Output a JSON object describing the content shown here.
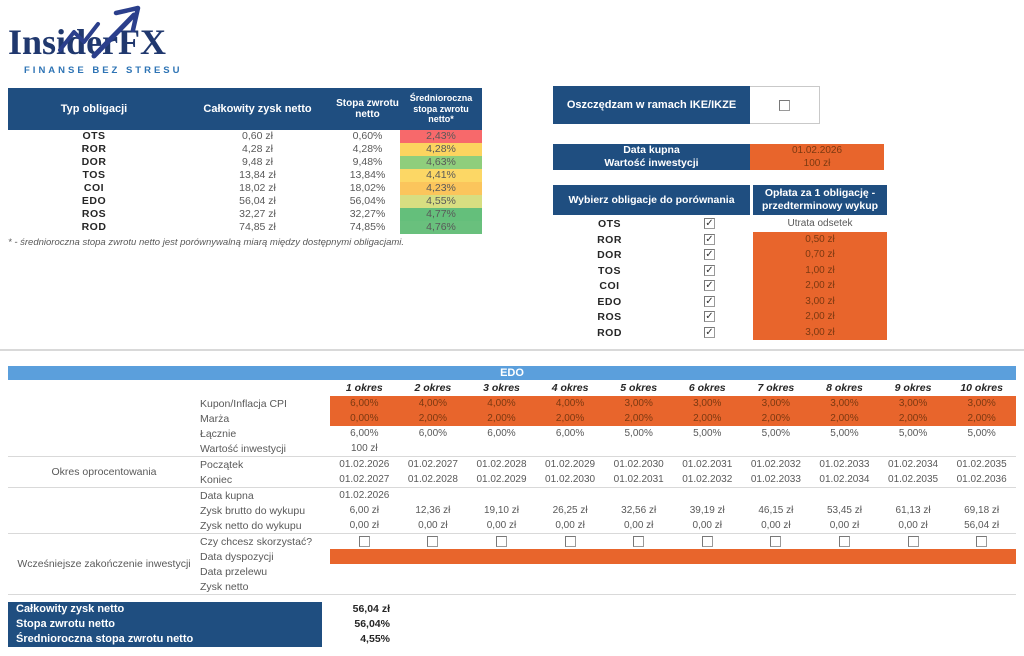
{
  "brand": {
    "name": "InsiderFX",
    "tagline": "FINANSE BEZ STRESU"
  },
  "colors": {
    "header_blue": "#1F4E80",
    "accent_orange": "#E8652C",
    "orange_text": "#7C3911",
    "edo_bar_blue": "#5B9FDC"
  },
  "comparison": {
    "col_headers": [
      "Typ obligacji",
      "Całkowity zysk netto",
      "Stopa zwrotu netto",
      "Średnioroczna stopa zwrotu netto*"
    ],
    "rows": [
      {
        "type": "OTS",
        "profit": "0,60 zł",
        "rate": "0,60%",
        "annual": "2,43%",
        "annual_color": "#F7696B"
      },
      {
        "type": "ROR",
        "profit": "4,28 zł",
        "rate": "4,28%",
        "annual": "4,28%",
        "annual_color": "#FCD45F"
      },
      {
        "type": "DOR",
        "profit": "9,48 zł",
        "rate": "9,48%",
        "annual": "4,63%",
        "annual_color": "#8FCE7C"
      },
      {
        "type": "TOS",
        "profit": "13,84 zł",
        "rate": "13,84%",
        "annual": "4,41%",
        "annual_color": "#FCD765"
      },
      {
        "type": "COI",
        "profit": "18,02 zł",
        "rate": "18,02%",
        "annual": "4,23%",
        "annual_color": "#FBC55C"
      },
      {
        "type": "EDO",
        "profit": "56,04 zł",
        "rate": "56,04%",
        "annual": "4,55%",
        "annual_color": "#D7DE81"
      },
      {
        "type": "ROS",
        "profit": "32,27 zł",
        "rate": "32,27%",
        "annual": "4,77%",
        "annual_color": "#64BF7B"
      },
      {
        "type": "ROD",
        "profit": "74,85 zł",
        "rate": "74,85%",
        "annual": "4,76%",
        "annual_color": "#69C07D"
      }
    ],
    "footnote": "* - średnioroczna stopa zwrotu netto jest porównywalną miarą między dostępnymi obligacjami."
  },
  "ike": {
    "label": "Oszczędzam w ramach IKE/IKZE",
    "checked": false
  },
  "purchase": {
    "rows": [
      {
        "label": "Data kupna",
        "value": "01.02.2026"
      },
      {
        "label": "Wartość inwestycji",
        "value": "100 zł"
      }
    ]
  },
  "selection": {
    "header_left": "Wybierz obligacje do porównania",
    "header_right": "Opłata za 1 obligację - przedterminowy wykup",
    "rows": [
      {
        "type": "OTS",
        "checked": true,
        "fee": "Utrata odsetek",
        "input": false
      },
      {
        "type": "ROR",
        "checked": true,
        "fee": "0,50 zł",
        "input": true
      },
      {
        "type": "DOR",
        "checked": true,
        "fee": "0,70 zł",
        "input": true
      },
      {
        "type": "TOS",
        "checked": true,
        "fee": "1,00 zł",
        "input": true
      },
      {
        "type": "COI",
        "checked": true,
        "fee": "2,00 zł",
        "input": true
      },
      {
        "type": "EDO",
        "checked": true,
        "fee": "3,00 zł",
        "input": true
      },
      {
        "type": "ROS",
        "checked": true,
        "fee": "2,00 zł",
        "input": true
      },
      {
        "type": "ROD",
        "checked": true,
        "fee": "3,00 zł",
        "input": true
      }
    ]
  },
  "edo": {
    "title": "EDO",
    "periods": [
      "1 okres",
      "2 okres",
      "3 okres",
      "4 okres",
      "5 okres",
      "6 okres",
      "7 okres",
      "8 okres",
      "9 okres",
      "10 okres"
    ],
    "sections": [
      {
        "group": "",
        "rows": [
          {
            "label": "Kupon/Inflacja CPI",
            "highlight": true,
            "values": [
              "6,00%",
              "4,00%",
              "4,00%",
              "4,00%",
              "3,00%",
              "3,00%",
              "3,00%",
              "3,00%",
              "3,00%",
              "3,00%"
            ]
          },
          {
            "label": "Marża",
            "highlight": true,
            "values": [
              "0,00%",
              "2,00%",
              "2,00%",
              "2,00%",
              "2,00%",
              "2,00%",
              "2,00%",
              "2,00%",
              "2,00%",
              "2,00%"
            ]
          },
          {
            "label": "Łącznie",
            "values": [
              "6,00%",
              "6,00%",
              "6,00%",
              "6,00%",
              "5,00%",
              "5,00%",
              "5,00%",
              "5,00%",
              "5,00%",
              "5,00%"
            ]
          },
          {
            "label": "Wartość inwestycji",
            "values": [
              "100 zł"
            ]
          }
        ]
      },
      {
        "group": "Okres oprocentowania",
        "rows": [
          {
            "label": "Początek",
            "values": [
              "01.02.2026",
              "01.02.2027",
              "01.02.2028",
              "01.02.2029",
              "01.02.2030",
              "01.02.2031",
              "01.02.2032",
              "01.02.2033",
              "01.02.2034",
              "01.02.2035"
            ]
          },
          {
            "label": "Koniec",
            "values": [
              "01.02.2027",
              "01.02.2028",
              "01.02.2029",
              "01.02.2030",
              "01.02.2031",
              "01.02.2032",
              "01.02.2033",
              "01.02.2034",
              "01.02.2035",
              "01.02.2036"
            ]
          }
        ]
      },
      {
        "group": "",
        "rows": [
          {
            "label": "Data kupna",
            "values": [
              "01.02.2026"
            ]
          },
          {
            "label": "Zysk brutto do wykupu",
            "values": [
              "6,00 zł",
              "12,36 zł",
              "19,10 zł",
              "26,25 zł",
              "32,56 zł",
              "39,19 zł",
              "46,15 zł",
              "53,45 zł",
              "61,13 zł",
              "69,18 zł"
            ]
          },
          {
            "label": "Zysk netto do wykupu",
            "values": [
              "0,00 zł",
              "0,00 zł",
              "0,00 zł",
              "0,00 zł",
              "0,00 zł",
              "0,00 zł",
              "0,00 zł",
              "0,00 zł",
              "0,00 zł",
              "56,04 zł"
            ]
          }
        ]
      },
      {
        "group": "Wcześniejsze zakończenie inwestycji",
        "rows": [
          {
            "label": "Czy chcesz skorzystać?",
            "checkboxes": true
          },
          {
            "label": "Data dyspozycji",
            "highlight": true,
            "values": []
          },
          {
            "label": "Data przelewu",
            "values": []
          },
          {
            "label": "Zysk netto",
            "values": []
          }
        ]
      }
    ]
  },
  "summary": {
    "rows": [
      {
        "label": "Całkowity zysk netto",
        "value": "56,04 zł"
      },
      {
        "label": "Stopa zwrotu netto",
        "value": "56,04%"
      },
      {
        "label": "Średnioroczna stopa zwrotu netto",
        "value": "4,55%"
      }
    ]
  }
}
